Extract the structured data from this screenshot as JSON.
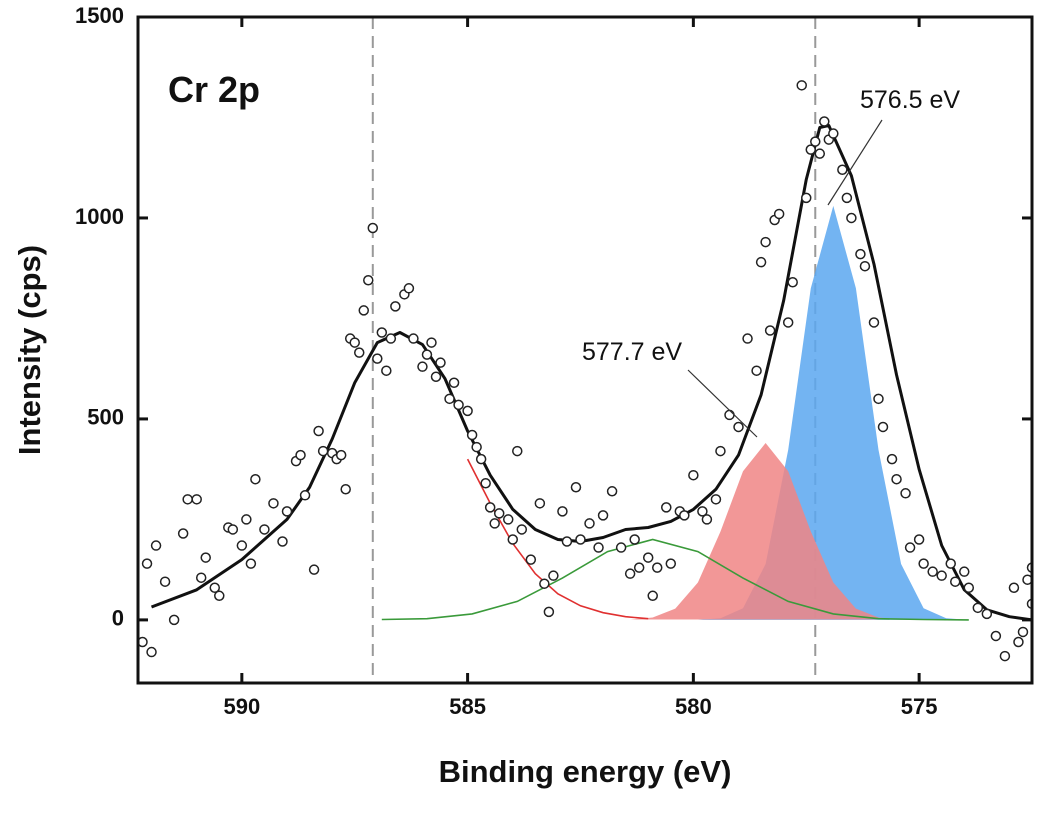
{
  "chart_data": {
    "type": "xps",
    "xlabel": "Binding energy (eV)",
    "ylabel": "Intensity (cps)",
    "annotations": [
      {
        "text": "Cr 2p"
      },
      {
        "text": "576.5 eV"
      },
      {
        "text": "577.7 eV"
      }
    ],
    "xlim": [
      592.3,
      572.5
    ],
    "ylim": [
      -157,
      1500
    ],
    "xticks": [
      590,
      585,
      580,
      575
    ],
    "yticks": [
      0,
      500,
      1000,
      1500
    ],
    "vlines": [
      587.1,
      577.3
    ],
    "series": [
      {
        "mode": "area",
        "color": "#5aa7f0",
        "x": [
          579.9,
          579.4,
          578.9,
          578.4,
          577.9,
          577.4,
          576.9,
          576.4,
          575.9,
          575.4,
          574.9,
          574.4,
          573.9
        ],
        "values": [
          0,
          4,
          29,
          139,
          423,
          825,
          1030,
          825,
          423,
          139,
          29,
          4,
          0
        ]
      },
      {
        "mode": "area",
        "color": "#f08585",
        "x": [
          581.4,
          580.9,
          580.4,
          579.9,
          579.4,
          578.9,
          578.4,
          577.9,
          577.4,
          576.9,
          576.4,
          575.9,
          575.4
        ],
        "values": [
          1,
          6,
          28,
          93,
          220,
          370,
          440,
          370,
          220,
          93,
          28,
          6,
          1
        ]
      },
      {
        "mode": "line",
        "color": "#3a9a3a",
        "x": [
          586.9,
          585.9,
          584.9,
          583.9,
          582.9,
          581.9,
          580.9,
          579.9,
          578.9,
          577.9,
          576.9,
          575.9,
          574.9,
          573.9
        ],
        "values": [
          1,
          3,
          15,
          46,
          104,
          170,
          200,
          170,
          104,
          46,
          15,
          3,
          1,
          0
        ]
      },
      {
        "mode": "line",
        "color": "#e03030",
        "x": [
          585,
          584.5,
          584,
          583.5,
          583,
          582.5,
          582,
          581.5,
          581
        ],
        "values": [
          400,
          290,
          190,
          115,
          65,
          35,
          18,
          8,
          3
        ]
      },
      {
        "mode": "fit",
        "color": "#111111",
        "x": [
          592,
          591,
          590,
          589,
          588.5,
          588,
          587.5,
          587,
          586.5,
          586,
          585.5,
          585,
          584.5,
          584,
          583.5,
          583,
          582.5,
          582,
          581.5,
          581,
          580.5,
          580,
          579.5,
          579,
          578.5,
          578,
          577.5,
          577.2,
          577,
          576.5,
          576,
          575.5,
          575,
          574.5,
          574,
          573.5,
          573,
          572.5
        ],
        "values": [
          32,
          75,
          150,
          250,
          330,
          450,
          590,
          690,
          715,
          685,
          600,
          470,
          360,
          275,
          225,
          200,
          195,
          205,
          225,
          230,
          245,
          275,
          325,
          410,
          560,
          795,
          1095,
          1225,
          1230,
          1105,
          885,
          610,
          375,
          185,
          75,
          25,
          8,
          0
        ]
      },
      {
        "mode": "points",
        "color": "#222222",
        "x": [
          592.2,
          592.1,
          592.0,
          591.9,
          591.7,
          591.5,
          591.3,
          591.2,
          591.0,
          590.9,
          590.8,
          590.6,
          590.5,
          590.3,
          590.2,
          590.0,
          589.9,
          589.8,
          589.7,
          589.5,
          589.3,
          589.1,
          589.0,
          588.8,
          588.7,
          588.6,
          588.4,
          588.3,
          588.2,
          588.0,
          587.9,
          587.8,
          587.7,
          587.6,
          587.5,
          587.4,
          587.3,
          587.2,
          587.1,
          587.0,
          586.9,
          586.8,
          586.7,
          586.6,
          586.4,
          586.3,
          586.2,
          586.0,
          585.9,
          585.8,
          585.7,
          585.6,
          585.4,
          585.3,
          585.2,
          585.0,
          584.9,
          584.8,
          584.7,
          584.6,
          584.5,
          584.4,
          584.3,
          584.1,
          584.0,
          583.9,
          583.8,
          583.6,
          583.4,
          583.3,
          583.2,
          583.1,
          582.9,
          582.8,
          582.6,
          582.5,
          582.3,
          582.1,
          582.0,
          581.8,
          581.6,
          581.4,
          581.3,
          581.2,
          581.0,
          580.9,
          580.8,
          580.6,
          580.5,
          580.3,
          580.2,
          580.0,
          579.8,
          579.7,
          579.5,
          579.4,
          579.2,
          579.0,
          578.8,
          578.6,
          578.5,
          578.4,
          578.3,
          578.2,
          578.1,
          577.9,
          577.8,
          577.6,
          577.5,
          577.4,
          577.3,
          577.2,
          577.1,
          577.0,
          576.9,
          576.7,
          576.6,
          576.5,
          576.3,
          576.2,
          576.0,
          575.9,
          575.8,
          575.6,
          575.5,
          575.3,
          575.2,
          575.0,
          574.9,
          574.7,
          574.5,
          574.3,
          574.2,
          574.0,
          573.9,
          573.7,
          573.5,
          573.3,
          573.1,
          572.9,
          572.8,
          572.7,
          572.6,
          572.5,
          572.5
        ],
        "values": [
          -55,
          140,
          -80,
          185,
          95,
          0,
          215,
          300,
          300,
          105,
          155,
          80,
          60,
          230,
          225,
          185,
          250,
          140,
          350,
          225,
          290,
          195,
          270,
          395,
          410,
          310,
          125,
          470,
          420,
          415,
          400,
          410,
          325,
          700,
          690,
          665,
          770,
          845,
          975,
          650,
          715,
          620,
          700,
          780,
          810,
          825,
          700,
          630,
          660,
          690,
          605,
          640,
          550,
          590,
          535,
          520,
          460,
          430,
          400,
          340,
          280,
          240,
          265,
          250,
          200,
          420,
          225,
          150,
          290,
          90,
          20,
          110,
          270,
          195,
          330,
          200,
          240,
          180,
          260,
          320,
          180,
          115,
          200,
          130,
          155,
          60,
          130,
          280,
          140,
          270,
          260,
          360,
          270,
          250,
          300,
          420,
          510,
          480,
          700,
          620,
          890,
          940,
          720,
          995,
          1010,
          740,
          840,
          1330,
          1050,
          1170,
          1190,
          1160,
          1240,
          1195,
          1210,
          1120,
          1050,
          1000,
          910,
          880,
          740,
          550,
          480,
          400,
          350,
          315,
          180,
          200,
          140,
          120,
          110,
          140,
          95,
          120,
          80,
          30,
          15,
          -40,
          -90,
          80,
          -55,
          -30,
          100,
          40,
          130
        ]
      }
    ]
  }
}
